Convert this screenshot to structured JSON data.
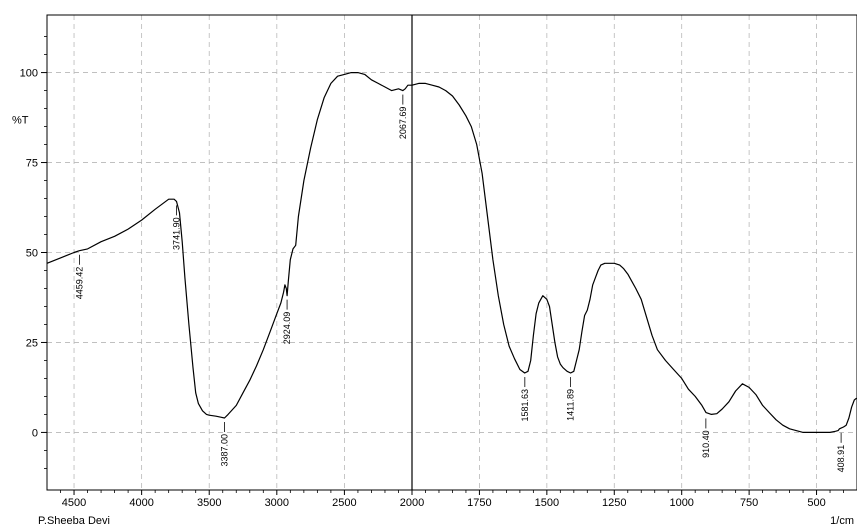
{
  "chart_data": {
    "type": "line",
    "ylabel": "%T",
    "xunit": "1/cm",
    "operator": "P.Sheeba Devi",
    "x_ticks": [
      4500,
      4000,
      3500,
      3000,
      2500,
      2000,
      1750,
      1500,
      1250,
      1000,
      750,
      500
    ],
    "y_ticks": [
      0,
      25,
      50,
      75,
      100
    ],
    "xlim": [
      4700,
      350
    ],
    "ylim": [
      -16,
      116
    ],
    "grid": true,
    "scale_break_at": 2000,
    "series": [
      {
        "x": [
          4700,
          4600,
          4500,
          4460,
          4400,
          4300,
          4200,
          4100,
          4000,
          3900,
          3800,
          3760,
          3742,
          3720,
          3700,
          3680,
          3650,
          3620,
          3600,
          3580,
          3550,
          3520,
          3500,
          3450,
          3410,
          3387,
          3360,
          3300,
          3250,
          3200,
          3150,
          3100,
          3050,
          3000,
          2970,
          2950,
          2940,
          2930,
          2924,
          2915,
          2900,
          2880,
          2860,
          2840,
          2800,
          2750,
          2700,
          2650,
          2600,
          2550,
          2500,
          2450,
          2400,
          2350,
          2300,
          2250,
          2200,
          2150,
          2100,
          2068,
          2050,
          2030,
          2000,
          1975,
          1950,
          1925,
          1900,
          1875,
          1850,
          1825,
          1800,
          1780,
          1760,
          1740,
          1720,
          1700,
          1680,
          1660,
          1640,
          1620,
          1600,
          1582,
          1570,
          1560,
          1550,
          1540,
          1530,
          1515,
          1500,
          1490,
          1480,
          1470,
          1460,
          1450,
          1440,
          1425,
          1412,
          1400,
          1390,
          1380,
          1370,
          1360,
          1350,
          1340,
          1330,
          1320,
          1310,
          1300,
          1285,
          1270,
          1250,
          1230,
          1215,
          1200,
          1185,
          1170,
          1150,
          1130,
          1110,
          1090,
          1060,
          1030,
          1000,
          975,
          950,
          925,
          910,
          890,
          870,
          850,
          825,
          800,
          775,
          750,
          725,
          700,
          675,
          650,
          625,
          600,
          550,
          500,
          450,
          430,
          420,
          415,
          409,
          400,
          390,
          380,
          370,
          360,
          352
        ],
        "y": [
          47,
          48.5,
          50,
          50.5,
          51,
          53,
          54.5,
          56.5,
          59,
          62,
          64.8,
          64.8,
          64.2,
          61,
          53,
          43,
          30,
          18,
          11,
          8,
          6,
          5,
          4.8,
          4.5,
          4.2,
          4.0,
          5,
          7.5,
          11,
          14.5,
          18.5,
          23,
          28,
          33,
          36,
          39,
          41,
          40,
          38,
          42,
          48,
          51,
          52,
          60,
          70,
          79,
          87,
          93,
          97,
          99,
          99.5,
          100,
          100,
          99.5,
          98,
          97,
          96,
          95,
          95.5,
          95,
          95.5,
          96.5,
          96.5,
          97,
          97,
          96.5,
          96,
          95,
          93.5,
          91,
          88,
          85,
          80,
          72,
          60,
          48,
          38,
          30,
          24,
          20.5,
          17.5,
          16.5,
          17,
          20,
          27,
          33,
          36,
          38,
          37,
          35,
          30,
          25,
          21,
          19,
          18,
          17,
          16.5,
          17,
          20,
          23,
          28,
          32.5,
          34,
          37,
          41,
          43,
          45,
          46.5,
          47,
          47,
          47,
          46.5,
          45.5,
          44,
          42,
          40,
          37,
          32,
          27,
          23,
          20,
          17.5,
          15,
          12,
          10,
          7.5,
          5.5,
          5,
          5.2,
          6.5,
          8.5,
          11.5,
          13.5,
          12.5,
          10.5,
          7.5,
          5.5,
          3.5,
          2,
          1,
          0,
          0,
          0,
          0.3,
          0.5,
          1,
          1.2,
          1.5,
          2,
          4,
          7,
          9,
          9.5
        ]
      }
    ],
    "annotations": [
      {
        "x": 4459.42,
        "label": "4459.42",
        "y": 50.5
      },
      {
        "x": 3741.9,
        "label": "3741.90",
        "y": 64.2
      },
      {
        "x": 3387.0,
        "label": "3387.00",
        "y": 4.0
      },
      {
        "x": 2924.09,
        "label": "2924.09",
        "y": 38
      },
      {
        "x": 2067.69,
        "label": "2067.69",
        "y": 95
      },
      {
        "x": 1581.63,
        "label": "1581.63",
        "y": 16.5
      },
      {
        "x": 1411.89,
        "label": "1411.89",
        "y": 16.5
      },
      {
        "x": 910.4,
        "label": "910.40",
        "y": 5.0
      },
      {
        "x": 408.91,
        "label": "408.91",
        "y": 1.0
      }
    ]
  }
}
